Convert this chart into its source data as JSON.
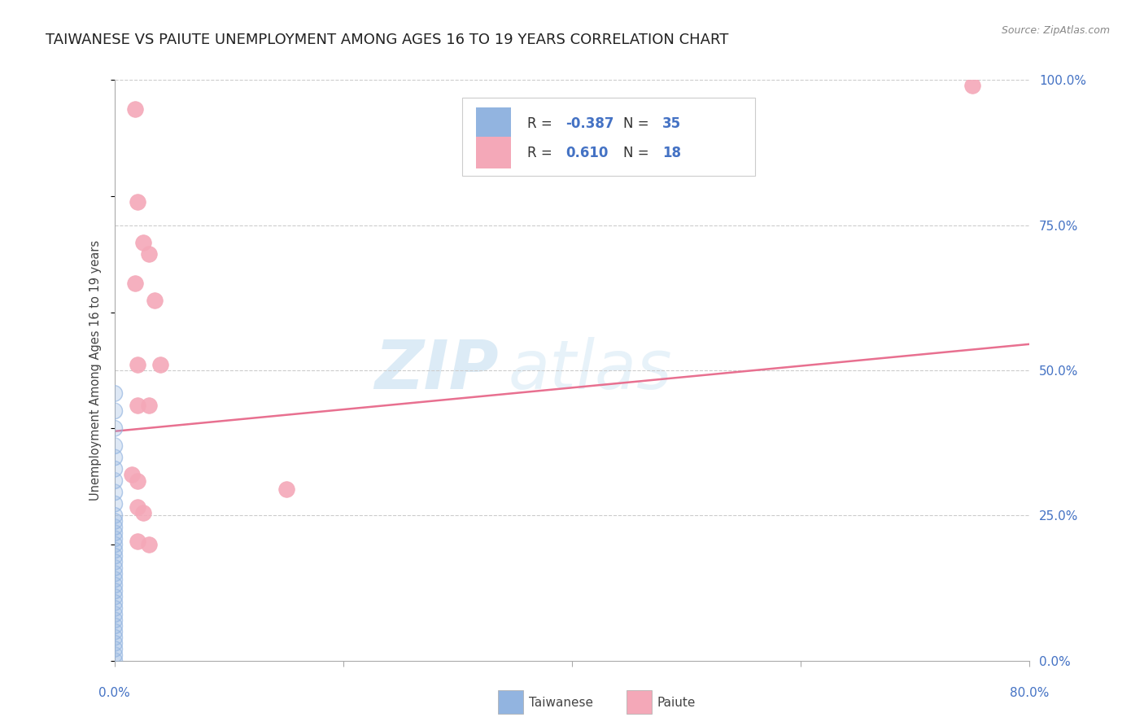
{
  "title": "TAIWANESE VS PAIUTE UNEMPLOYMENT AMONG AGES 16 TO 19 YEARS CORRELATION CHART",
  "source": "Source: ZipAtlas.com",
  "ylabel": "Unemployment Among Ages 16 to 19 years",
  "xlim": [
    0.0,
    0.8
  ],
  "ylim": [
    0.0,
    1.0
  ],
  "xticks": [
    0.0,
    0.2,
    0.4,
    0.6,
    0.8
  ],
  "xticklabels": [
    "0.0%",
    "",
    "",
    "",
    "80.0%"
  ],
  "yticks_right": [
    0.0,
    0.25,
    0.5,
    0.75,
    1.0
  ],
  "yticklabels_right": [
    "0.0%",
    "25.0%",
    "50.0%",
    "75.0%",
    "100.0%"
  ],
  "hlines": [
    0.25,
    0.5,
    0.75,
    1.0
  ],
  "background_color": "#ffffff",
  "watermark_zip": "ZIP",
  "watermark_atlas": "atlas",
  "legend_r1_label": "R = ",
  "legend_r1_val": "-0.387",
  "legend_n1_label": "N = ",
  "legend_n1_val": "35",
  "legend_r2_label": "R =  ",
  "legend_r2_val": "0.610",
  "legend_n2_label": "N = ",
  "legend_n2_val": "18",
  "legend_color1": "#92b4e0",
  "legend_color2": "#f4a8b8",
  "title_fontsize": 13,
  "axis_color": "#4472c4",
  "taiwanese_dots": [
    [
      0.0,
      0.0
    ],
    [
      0.0,
      0.01
    ],
    [
      0.0,
      0.02
    ],
    [
      0.0,
      0.03
    ],
    [
      0.0,
      0.04
    ],
    [
      0.0,
      0.05
    ],
    [
      0.0,
      0.06
    ],
    [
      0.0,
      0.07
    ],
    [
      0.0,
      0.08
    ],
    [
      0.0,
      0.09
    ],
    [
      0.0,
      0.1
    ],
    [
      0.0,
      0.11
    ],
    [
      0.0,
      0.12
    ],
    [
      0.0,
      0.13
    ],
    [
      0.0,
      0.14
    ],
    [
      0.0,
      0.15
    ],
    [
      0.0,
      0.16
    ],
    [
      0.0,
      0.17
    ],
    [
      0.0,
      0.18
    ],
    [
      0.0,
      0.19
    ],
    [
      0.0,
      0.2
    ],
    [
      0.0,
      0.21
    ],
    [
      0.0,
      0.22
    ],
    [
      0.0,
      0.23
    ],
    [
      0.0,
      0.24
    ],
    [
      0.0,
      0.25
    ],
    [
      0.0,
      0.27
    ],
    [
      0.0,
      0.29
    ],
    [
      0.0,
      0.31
    ],
    [
      0.0,
      0.33
    ],
    [
      0.0,
      0.35
    ],
    [
      0.0,
      0.37
    ],
    [
      0.0,
      0.4
    ],
    [
      0.0,
      0.43
    ],
    [
      0.0,
      0.46
    ]
  ],
  "paiute_dots": [
    [
      0.018,
      0.95
    ],
    [
      0.02,
      0.79
    ],
    [
      0.025,
      0.72
    ],
    [
      0.03,
      0.7
    ],
    [
      0.018,
      0.65
    ],
    [
      0.035,
      0.62
    ],
    [
      0.02,
      0.51
    ],
    [
      0.04,
      0.51
    ],
    [
      0.02,
      0.44
    ],
    [
      0.03,
      0.44
    ],
    [
      0.015,
      0.32
    ],
    [
      0.02,
      0.31
    ],
    [
      0.15,
      0.295
    ],
    [
      0.02,
      0.265
    ],
    [
      0.025,
      0.255
    ],
    [
      0.02,
      0.205
    ],
    [
      0.03,
      0.2
    ],
    [
      0.75,
      0.99
    ]
  ],
  "paiute_line_x": [
    0.0,
    0.8
  ],
  "paiute_line_y": [
    0.395,
    0.545
  ],
  "paiute_line_color": "#e87090",
  "dot_size": 200,
  "taiwanese_dot_color": "#92b4e0",
  "paiute_dot_color": "#f4a8b8"
}
